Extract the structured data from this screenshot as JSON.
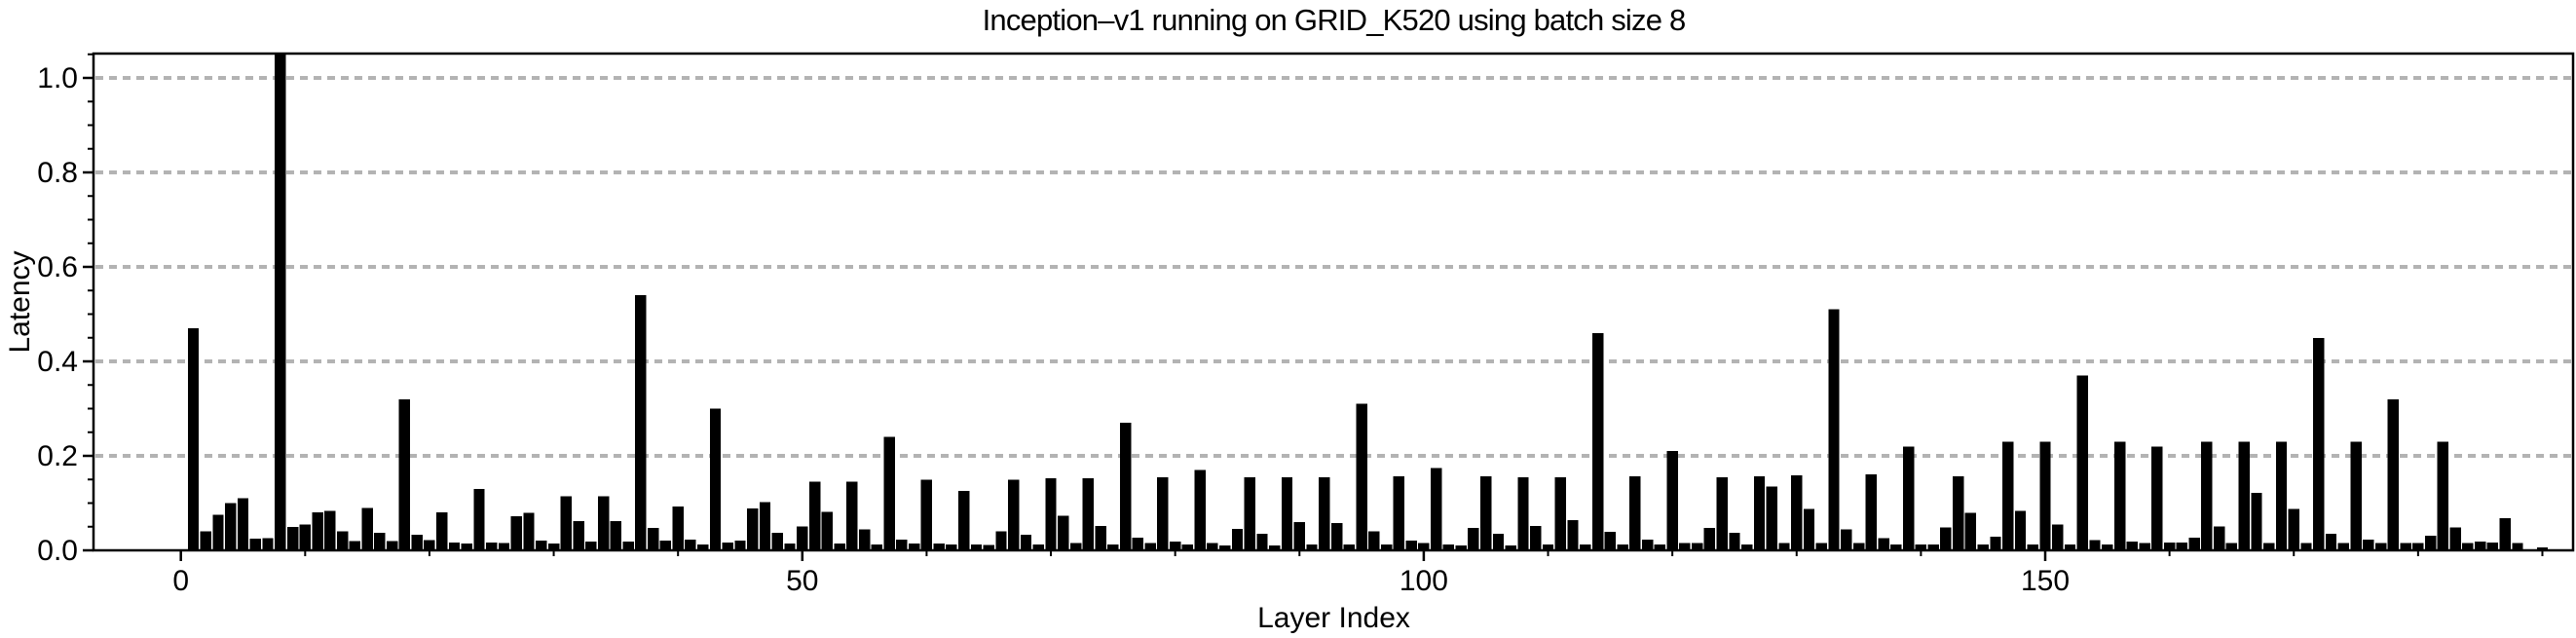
{
  "figure": {
    "background": "#ffffff"
  },
  "chart_data": {
    "type": "bar",
    "title": "Inception–v1 running on GRID_K520 using batch size 8",
    "xlabel": "Layer Index",
    "ylabel": "Latency",
    "x_start": 0,
    "n_layers": 191,
    "x_ticks": [
      0,
      50,
      100,
      150
    ],
    "y_ticks": [
      0.0,
      0.2,
      0.4,
      0.6,
      0.8,
      1.0
    ],
    "x_minor_step": 10,
    "y_minor_step": 0.05,
    "xlim": [
      -7,
      192.5
    ],
    "ylim": [
      0,
      1.05
    ],
    "grid": {
      "axis": "y",
      "style": "dotted",
      "on": true,
      "color": "#b3b3b3"
    },
    "bar_color": "#000000",
    "axis_color": "#000000",
    "values": [
      0.002,
      0.47,
      0.04,
      0.075,
      0.1,
      0.11,
      0.025,
      0.026,
      1.05,
      0.05,
      0.055,
      0.08,
      0.083,
      0.04,
      0.02,
      0.09,
      0.037,
      0.02,
      0.32,
      0.033,
      0.022,
      0.08,
      0.017,
      0.014,
      0.13,
      0.017,
      0.015,
      0.072,
      0.079,
      0.021,
      0.014,
      0.114,
      0.062,
      0.019,
      0.114,
      0.062,
      0.019,
      0.54,
      0.047,
      0.021,
      0.093,
      0.023,
      0.012,
      0.3,
      0.017,
      0.021,
      0.089,
      0.102,
      0.037,
      0.014,
      0.051,
      0.145,
      0.081,
      0.014,
      0.145,
      0.044,
      0.012,
      0.24,
      0.023,
      0.014,
      0.15,
      0.014,
      0.012,
      0.126,
      0.012,
      0.011,
      0.04,
      0.15,
      0.033,
      0.012,
      0.153,
      0.073,
      0.015,
      0.153,
      0.052,
      0.012,
      0.27,
      0.027,
      0.015,
      0.155,
      0.019,
      0.012,
      0.17,
      0.015,
      0.01,
      0.045,
      0.155,
      0.035,
      0.01,
      0.155,
      0.06,
      0.012,
      0.155,
      0.058,
      0.012,
      0.31,
      0.04,
      0.012,
      0.157,
      0.021,
      0.015,
      0.174,
      0.012,
      0.01,
      0.047,
      0.157,
      0.035,
      0.01,
      0.155,
      0.052,
      0.012,
      0.155,
      0.064,
      0.012,
      0.46,
      0.039,
      0.012,
      0.157,
      0.023,
      0.012,
      0.21,
      0.015,
      0.015,
      0.047,
      0.155,
      0.037,
      0.012,
      0.157,
      0.135,
      0.015,
      0.159,
      0.088,
      0.015,
      0.51,
      0.044,
      0.015,
      0.161,
      0.026,
      0.012,
      0.22,
      0.012,
      0.012,
      0.048,
      0.157,
      0.079,
      0.012,
      0.029,
      0.23,
      0.083,
      0.012,
      0.23,
      0.055,
      0.012,
      0.37,
      0.022,
      0.012,
      0.23,
      0.019,
      0.015,
      0.22,
      0.017,
      0.017,
      0.027,
      0.23,
      0.051,
      0.015,
      0.23,
      0.122,
      0.015,
      0.23,
      0.088,
      0.015,
      0.45,
      0.035,
      0.015,
      0.23,
      0.023,
      0.015,
      0.32,
      0.015,
      0.015,
      0.031,
      0.23,
      0.048,
      0.015,
      0.019,
      0.017,
      0.068,
      0.015,
      0.002,
      0.006
    ]
  }
}
